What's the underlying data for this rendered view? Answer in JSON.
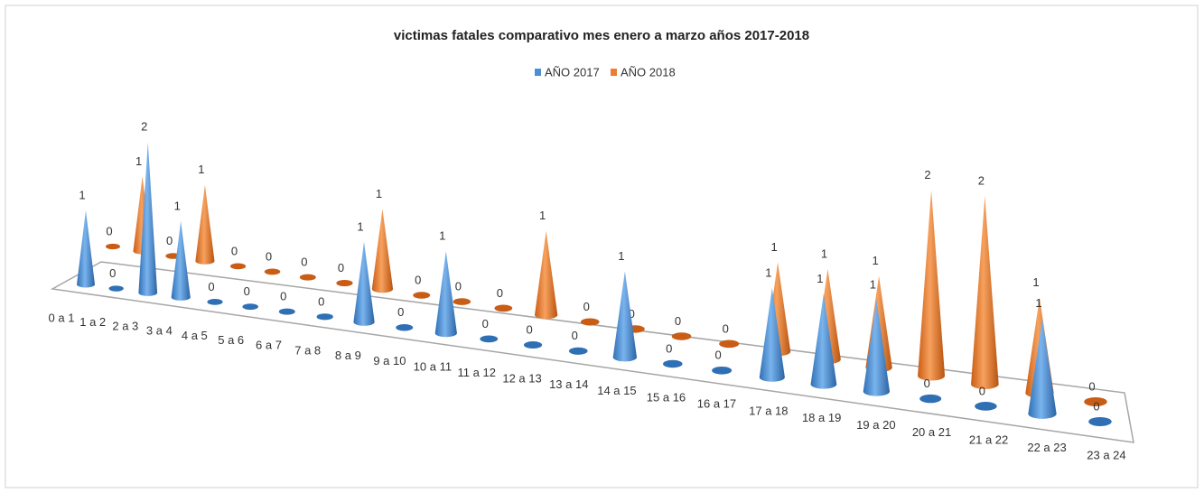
{
  "chart_data": {
    "type": "cone3d",
    "title": "victimas fatales comparativo mes enero a marzo años 2017-2018",
    "categories": [
      "0 a 1",
      "1 a 2",
      "2 a 3",
      "3 a 4",
      "4 a 5",
      "5 a 6",
      "6 a 7",
      "7 a 8",
      "8 a 9",
      "9 a 10",
      "10 a 11",
      "11 a 12",
      "12 a 13",
      "13 a 14",
      "14 a 15",
      "15 a 16",
      "16 a 17",
      "17 a 18",
      "18 a 19",
      "19 a 20",
      "20 a 21",
      "21 a 22",
      "22 a 23",
      "23 a 24"
    ],
    "series": [
      {
        "name": "AÑO 2017",
        "color": "#4a8fd6",
        "values": [
          1,
          0,
          2,
          1,
          0,
          0,
          0,
          0,
          1,
          0,
          1,
          0,
          0,
          0,
          1,
          0,
          0,
          1,
          1,
          1,
          0,
          0,
          1,
          0
        ]
      },
      {
        "name": "AÑO 2018",
        "color": "#ed7d31",
        "values": [
          0,
          1,
          0,
          1,
          0,
          0,
          0,
          0,
          1,
          0,
          0,
          0,
          1,
          0,
          0,
          0,
          0,
          1,
          1,
          1,
          2,
          2,
          1,
          0
        ]
      }
    ]
  }
}
